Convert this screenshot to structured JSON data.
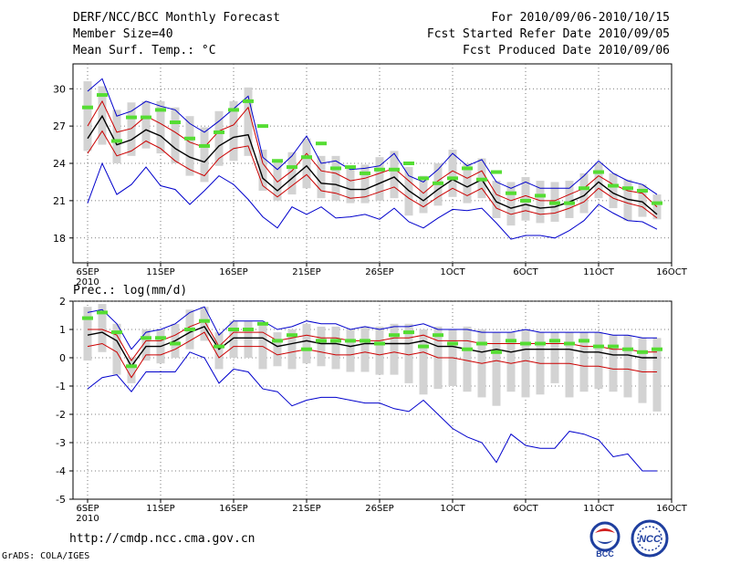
{
  "header": {
    "title": "DERF/NCC/BCC Monthly Forecast",
    "member_size": "Member Size=40",
    "variable": "Mean Surf. Temp.: °C",
    "period": "For 2010/09/06-2010/10/15",
    "started": "Fcst Started Refer Date 2010/09/05",
    "produced": "Fcst Produced Date 2010/09/06"
  },
  "footer": {
    "url": "http://cmdp.ncc.cma.gov.cn",
    "credit": "GrADS: COLA/IGES",
    "logo_bcc": "BCC",
    "logo_ncc": "NCC"
  },
  "colors": {
    "mean": "#000000",
    "spread": "#cc0000",
    "extreme": "#0000cc",
    "box": "#d3d3d3",
    "obs": "#55dd33"
  },
  "chart_data": [
    {
      "type": "line",
      "title": "Mean Surf. Temp.: °C",
      "ylim": [
        16,
        32
      ],
      "yticks": [
        18,
        21,
        24,
        27,
        30
      ],
      "xlim": [
        1,
        41
      ],
      "xticks": [
        {
          "day": 2,
          "label": "6SEP",
          "sub": "2010"
        },
        {
          "day": 7,
          "label": "11SEP"
        },
        {
          "day": 12,
          "label": "16SEP"
        },
        {
          "day": 17,
          "label": "21SEP"
        },
        {
          "day": 22,
          "label": "26SEP"
        },
        {
          "day": 27,
          "label": "1OCT"
        },
        {
          "day": 32,
          "label": "6OCT"
        },
        {
          "day": 37,
          "label": "11OCT"
        },
        {
          "day": 42,
          "label": "16OCT"
        }
      ],
      "days": [
        2,
        3,
        4,
        5,
        6,
        7,
        8,
        9,
        10,
        11,
        12,
        13,
        14,
        15,
        16,
        17,
        18,
        19,
        20,
        21,
        22,
        23,
        24,
        25,
        26,
        27,
        28,
        29,
        30,
        31,
        32,
        33,
        34,
        35,
        36,
        37,
        38,
        39,
        40,
        41
      ],
      "series": [
        {
          "name": "max",
          "color": "extreme",
          "values": [
            29.8,
            30.8,
            27.8,
            28.2,
            29.0,
            28.6,
            28.3,
            27.2,
            26.5,
            27.4,
            28.4,
            29.4,
            24.5,
            23.5,
            24.6,
            26.2,
            24.0,
            24.2,
            23.5,
            23.6,
            23.8,
            24.8,
            23.0,
            22.5,
            23.5,
            24.8,
            23.8,
            24.3,
            22.5,
            22.0,
            22.5,
            22.0,
            22.0,
            22.0,
            23.0,
            24.2,
            23.2,
            22.6,
            22.3,
            21.5
          ]
        },
        {
          "name": "p75",
          "color": "spread",
          "values": [
            27.0,
            29.0,
            26.5,
            26.8,
            27.8,
            27.2,
            26.5,
            25.7,
            25.3,
            26.6,
            27.1,
            28.5,
            24.0,
            22.5,
            23.4,
            24.8,
            23.4,
            23.2,
            22.6,
            22.8,
            23.2,
            23.6,
            22.6,
            21.6,
            22.6,
            23.4,
            22.8,
            23.4,
            21.5,
            21.0,
            21.4,
            21.0,
            21.0,
            21.5,
            22.0,
            23.0,
            22.3,
            21.8,
            21.6,
            20.5
          ]
        },
        {
          "name": "mean",
          "color": "mean",
          "values": [
            26.0,
            27.8,
            25.5,
            25.9,
            26.7,
            26.2,
            25.2,
            24.5,
            24.1,
            25.4,
            26.1,
            26.3,
            22.8,
            21.8,
            22.8,
            23.8,
            22.4,
            22.3,
            21.9,
            21.9,
            22.4,
            22.9,
            21.8,
            21.0,
            21.9,
            22.7,
            22.1,
            22.7,
            20.9,
            20.4,
            20.7,
            20.4,
            20.5,
            20.9,
            21.4,
            22.5,
            21.6,
            21.1,
            20.9,
            19.9
          ]
        },
        {
          "name": "p25",
          "color": "spread",
          "values": [
            24.8,
            26.6,
            24.6,
            25.0,
            25.8,
            25.2,
            24.2,
            23.5,
            23.0,
            24.4,
            25.2,
            25.4,
            22.2,
            21.3,
            22.2,
            23.1,
            21.8,
            21.6,
            21.2,
            21.3,
            21.7,
            22.1,
            21.2,
            20.5,
            21.3,
            22.0,
            21.4,
            22.0,
            20.4,
            19.9,
            20.2,
            19.9,
            20.0,
            20.4,
            20.9,
            22.0,
            21.2,
            20.8,
            20.5,
            19.6
          ]
        },
        {
          "name": "min",
          "color": "extreme",
          "values": [
            20.8,
            24.0,
            21.5,
            22.3,
            23.7,
            22.2,
            21.9,
            20.7,
            21.8,
            23.0,
            22.3,
            21.1,
            19.7,
            18.8,
            20.5,
            19.9,
            20.5,
            19.6,
            19.7,
            19.9,
            19.5,
            20.4,
            19.3,
            18.8,
            19.6,
            20.3,
            20.2,
            20.4,
            19.2,
            17.9,
            18.2,
            18.2,
            18.0,
            18.6,
            19.4,
            20.7,
            20.0,
            19.4,
            19.3,
            18.7
          ]
        }
      ],
      "boxes": [
        {
          "day": 2,
          "low": 25.0,
          "high": 30.6
        },
        {
          "day": 3,
          "low": 25.5,
          "high": 30.2
        },
        {
          "day": 4,
          "low": 24.0,
          "high": 28.3
        },
        {
          "day": 5,
          "low": 24.6,
          "high": 28.9
        },
        {
          "day": 6,
          "low": 25.2,
          "high": 29.0
        },
        {
          "day": 7,
          "low": 24.8,
          "high": 29.0
        },
        {
          "day": 8,
          "low": 24.0,
          "high": 28.5
        },
        {
          "day": 9,
          "low": 23.0,
          "high": 27.8
        },
        {
          "day": 10,
          "low": 22.5,
          "high": 26.9
        },
        {
          "day": 11,
          "low": 23.8,
          "high": 28.2
        },
        {
          "day": 12,
          "low": 24.2,
          "high": 29.0
        },
        {
          "day": 13,
          "low": 24.6,
          "high": 30.1
        },
        {
          "day": 14,
          "low": 21.8,
          "high": 25.1
        },
        {
          "day": 15,
          "low": 21.0,
          "high": 24.2
        },
        {
          "day": 16,
          "low": 21.5,
          "high": 24.9
        },
        {
          "day": 17,
          "low": 22.0,
          "high": 26.0
        },
        {
          "day": 18,
          "low": 21.2,
          "high": 24.6
        },
        {
          "day": 19,
          "low": 21.0,
          "high": 24.6
        },
        {
          "day": 20,
          "low": 20.8,
          "high": 23.8
        },
        {
          "day": 21,
          "low": 20.8,
          "high": 23.9
        },
        {
          "day": 22,
          "low": 21.0,
          "high": 24.5
        },
        {
          "day": 23,
          "low": 21.2,
          "high": 25.0
        },
        {
          "day": 24,
          "low": 19.8,
          "high": 23.7
        },
        {
          "day": 25,
          "low": 20.0,
          "high": 23.0
        },
        {
          "day": 26,
          "low": 20.6,
          "high": 24.0
        },
        {
          "day": 27,
          "low": 21.3,
          "high": 25.1
        },
        {
          "day": 28,
          "low": 20.8,
          "high": 24.0
        },
        {
          "day": 29,
          "low": 21.2,
          "high": 24.4
        },
        {
          "day": 30,
          "low": 19.6,
          "high": 22.6
        },
        {
          "day": 31,
          "low": 19.0,
          "high": 22.5
        },
        {
          "day": 32,
          "low": 19.4,
          "high": 22.9
        },
        {
          "day": 33,
          "low": 19.2,
          "high": 22.6
        },
        {
          "day": 34,
          "low": 19.3,
          "high": 22.5
        },
        {
          "day": 35,
          "low": 19.6,
          "high": 22.6
        },
        {
          "day": 36,
          "low": 20.0,
          "high": 23.2
        },
        {
          "day": 37,
          "low": 21.2,
          "high": 24.0
        },
        {
          "day": 38,
          "low": 20.4,
          "high": 23.2
        },
        {
          "day": 39,
          "low": 19.4,
          "high": 22.7
        },
        {
          "day": 40,
          "low": 19.7,
          "high": 22.3
        },
        {
          "day": 41,
          "low": 19.5,
          "high": 21.5
        }
      ],
      "observed": [
        28.5,
        29.5,
        25.8,
        27.7,
        27.7,
        28.3,
        27.3,
        26.0,
        25.4,
        26.5,
        28.3,
        29.0,
        27.0,
        24.2,
        23.7,
        24.5,
        25.6,
        23.6,
        23.7,
        23.2,
        23.5,
        23.5,
        24.0,
        22.8,
        22.4,
        22.8,
        23.6,
        22.7,
        23.3,
        21.6,
        21.0,
        21.4,
        20.8,
        20.8,
        22.0,
        23.3,
        22.2,
        22.0,
        21.8,
        20.8
      ]
    },
    {
      "type": "line",
      "title": "Prec.: log(mm/d)",
      "ylim": [
        -5,
        2
      ],
      "yticks": [
        -5,
        -4,
        -3,
        -2,
        -1,
        0,
        1,
        2
      ],
      "xlim": [
        1,
        41
      ],
      "xticks": [
        {
          "day": 2,
          "label": "6SEP",
          "sub": "2010"
        },
        {
          "day": 7,
          "label": "11SEP"
        },
        {
          "day": 12,
          "label": "16SEP"
        },
        {
          "day": 17,
          "label": "21SEP"
        },
        {
          "day": 22,
          "label": "26SEP"
        },
        {
          "day": 27,
          "label": "1OCT"
        },
        {
          "day": 32,
          "label": "6OCT"
        },
        {
          "day": 37,
          "label": "11OCT"
        },
        {
          "day": 42,
          "label": "16OCT"
        }
      ],
      "days": [
        2,
        3,
        4,
        5,
        6,
        7,
        8,
        9,
        10,
        11,
        12,
        13,
        14,
        15,
        16,
        17,
        18,
        19,
        20,
        21,
        22,
        23,
        24,
        25,
        26,
        27,
        28,
        29,
        30,
        31,
        32,
        33,
        34,
        35,
        36,
        37,
        38,
        39,
        40,
        41
      ],
      "series": [
        {
          "name": "max",
          "color": "extreme",
          "values": [
            1.6,
            1.7,
            1.2,
            0.3,
            0.9,
            1.0,
            1.2,
            1.6,
            1.8,
            0.8,
            1.3,
            1.3,
            1.3,
            1.0,
            1.1,
            1.3,
            1.2,
            1.2,
            1.0,
            1.1,
            1.0,
            1.1,
            1.1,
            1.2,
            1.0,
            1.0,
            1.0,
            0.9,
            0.9,
            0.9,
            1.0,
            0.9,
            0.9,
            0.9,
            0.9,
            0.9,
            0.8,
            0.8,
            0.7,
            0.7
          ]
        },
        {
          "name": "p75",
          "color": "spread",
          "values": [
            1.0,
            1.0,
            0.8,
            -0.1,
            0.6,
            0.6,
            0.8,
            1.1,
            1.3,
            0.4,
            0.9,
            0.9,
            0.9,
            0.6,
            0.7,
            0.8,
            0.7,
            0.7,
            0.6,
            0.6,
            0.6,
            0.7,
            0.7,
            0.8,
            0.6,
            0.6,
            0.6,
            0.5,
            0.5,
            0.5,
            0.5,
            0.5,
            0.5,
            0.5,
            0.4,
            0.4,
            0.3,
            0.3,
            0.2,
            0.2
          ]
        },
        {
          "name": "mean",
          "color": "mean",
          "values": [
            0.8,
            0.9,
            0.6,
            -0.3,
            0.4,
            0.4,
            0.6,
            0.9,
            1.1,
            0.3,
            0.7,
            0.7,
            0.7,
            0.4,
            0.5,
            0.6,
            0.5,
            0.5,
            0.4,
            0.5,
            0.5,
            0.5,
            0.5,
            0.6,
            0.4,
            0.4,
            0.3,
            0.2,
            0.3,
            0.2,
            0.3,
            0.3,
            0.3,
            0.3,
            0.2,
            0.2,
            0.1,
            0.1,
            0.0,
            0.0
          ]
        },
        {
          "name": "p25",
          "color": "spread",
          "values": [
            0.4,
            0.5,
            0.2,
            -0.7,
            0.1,
            0.1,
            0.3,
            0.6,
            0.9,
            0.0,
            0.4,
            0.4,
            0.4,
            0.1,
            0.2,
            0.3,
            0.2,
            0.1,
            0.1,
            0.2,
            0.1,
            0.2,
            0.1,
            0.2,
            0.0,
            0.0,
            -0.1,
            -0.2,
            -0.1,
            -0.2,
            -0.1,
            -0.2,
            -0.2,
            -0.2,
            -0.3,
            -0.3,
            -0.4,
            -0.4,
            -0.5,
            -0.5
          ]
        },
        {
          "name": "min",
          "color": "extreme",
          "values": [
            -1.1,
            -0.7,
            -0.6,
            -1.2,
            -0.5,
            -0.5,
            -0.5,
            0.2,
            0.0,
            -0.9,
            -0.4,
            -0.5,
            -1.1,
            -1.2,
            -1.7,
            -1.5,
            -1.4,
            -1.4,
            -1.5,
            -1.6,
            -1.6,
            -1.8,
            -1.9,
            -1.5,
            -2.0,
            -2.5,
            -2.8,
            -3.0,
            -3.7,
            -2.7,
            -3.1,
            -3.2,
            -3.2,
            -2.6,
            -2.7,
            -2.9,
            -3.5,
            -3.4,
            -4.0,
            -4.0
          ]
        }
      ],
      "boxes": [
        {
          "day": 2,
          "low": -0.1,
          "high": 1.8
        },
        {
          "day": 3,
          "low": 0.2,
          "high": 1.9
        },
        {
          "day": 4,
          "low": -0.6,
          "high": 1.2
        },
        {
          "day": 5,
          "low": -0.9,
          "high": 0.0
        },
        {
          "day": 6,
          "low": -0.1,
          "high": 1.0
        },
        {
          "day": 7,
          "low": -0.2,
          "high": 1.0
        },
        {
          "day": 8,
          "low": 0.0,
          "high": 1.2
        },
        {
          "day": 9,
          "low": 0.3,
          "high": 1.7
        },
        {
          "day": 10,
          "low": 0.6,
          "high": 1.8
        },
        {
          "day": 11,
          "low": -0.4,
          "high": 0.9
        },
        {
          "day": 12,
          "low": 0.0,
          "high": 1.3
        },
        {
          "day": 13,
          "low": 0.0,
          "high": 1.3
        },
        {
          "day": 14,
          "low": -0.4,
          "high": 1.2
        },
        {
          "day": 15,
          "low": -0.3,
          "high": 0.9
        },
        {
          "day": 16,
          "low": -0.4,
          "high": 1.0
        },
        {
          "day": 17,
          "low": -0.2,
          "high": 1.2
        },
        {
          "day": 18,
          "low": -0.3,
          "high": 1.1
        },
        {
          "day": 19,
          "low": -0.4,
          "high": 1.1
        },
        {
          "day": 20,
          "low": -0.5,
          "high": 1.0
        },
        {
          "day": 21,
          "low": -0.5,
          "high": 1.1
        },
        {
          "day": 22,
          "low": -0.6,
          "high": 1.1
        },
        {
          "day": 23,
          "low": -0.6,
          "high": 1.2
        },
        {
          "day": 24,
          "low": -0.9,
          "high": 1.2
        },
        {
          "day": 25,
          "low": -1.3,
          "high": 1.0
        },
        {
          "day": 26,
          "low": -1.1,
          "high": 1.1
        },
        {
          "day": 27,
          "low": -1.0,
          "high": 1.0
        },
        {
          "day": 28,
          "low": -1.2,
          "high": 1.1
        },
        {
          "day": 29,
          "low": -1.4,
          "high": 1.0
        },
        {
          "day": 30,
          "low": -1.7,
          "high": 0.9
        },
        {
          "day": 31,
          "low": -1.2,
          "high": 0.9
        },
        {
          "day": 32,
          "low": -1.4,
          "high": 1.0
        },
        {
          "day": 33,
          "low": -1.3,
          "high": 0.9
        },
        {
          "day": 34,
          "low": -0.9,
          "high": 0.9
        },
        {
          "day": 35,
          "low": -1.4,
          "high": 0.9
        },
        {
          "day": 36,
          "low": -1.2,
          "high": 0.9
        },
        {
          "day": 37,
          "low": -1.1,
          "high": 0.9
        },
        {
          "day": 38,
          "low": -1.2,
          "high": 0.8
        },
        {
          "day": 39,
          "low": -1.4,
          "high": 0.8
        },
        {
          "day": 40,
          "low": -1.6,
          "high": 0.7
        },
        {
          "day": 41,
          "low": -1.9,
          "high": 0.7
        }
      ],
      "observed": [
        1.4,
        1.6,
        0.9,
        -0.3,
        0.7,
        0.7,
        0.5,
        1.0,
        1.3,
        0.4,
        1.0,
        1.0,
        1.2,
        0.6,
        0.8,
        0.3,
        0.6,
        0.6,
        0.6,
        0.6,
        0.5,
        0.8,
        0.9,
        0.4,
        0.8,
        0.5,
        0.3,
        0.5,
        0.2,
        0.6,
        0.5,
        0.5,
        0.6,
        0.5,
        0.6,
        0.4,
        0.4,
        0.3,
        0.2,
        0.3
      ]
    }
  ]
}
